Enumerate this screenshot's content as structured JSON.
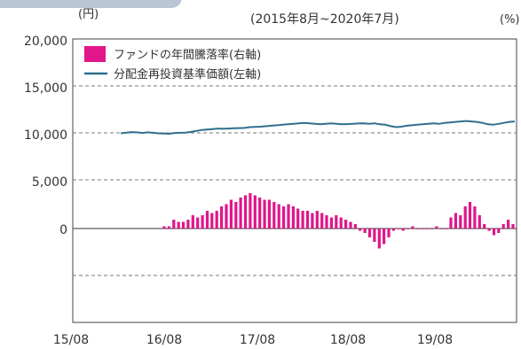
{
  "chart_data": {
    "type": "bar+line",
    "left_unit": "(円)",
    "right_unit": "(%)",
    "period": "(2015年8月~2020年7月)",
    "x_tick_labels": [
      "15/08",
      "16/08",
      "17/08",
      "18/08",
      "19/08"
    ],
    "y_left_ticks": [
      "20,000",
      "15,000",
      "10,000",
      "5,000",
      "0"
    ],
    "y_left_range": [
      -10000,
      20000
    ],
    "legend": [
      {
        "label": "ファンドの年間騰落率(右軸)",
        "color": "#e0168a",
        "kind": "bar"
      },
      {
        "label": "分配金再投資基準価額(左軸)",
        "color": "#2f6f8e",
        "kind": "line"
      }
    ],
    "line_series": {
      "name": "分配金再投資基準価額(左軸)",
      "values": [
        10050,
        10120,
        10180,
        10150,
        10080,
        10150,
        10100,
        10050,
        10020,
        10000,
        10080,
        10100,
        10120,
        10200,
        10300,
        10400,
        10450,
        10500,
        10550,
        10520,
        10550,
        10580,
        10600,
        10620,
        10700,
        10720,
        10750,
        10800,
        10850,
        10900,
        10950,
        11000,
        11050,
        11100,
        11150,
        11100,
        11050,
        11000,
        11050,
        11100,
        11050,
        11000,
        11020,
        11050,
        11080,
        11100,
        11050,
        11100,
        11000,
        10950,
        10800,
        10700,
        10750,
        10850,
        10900,
        10950,
        11000,
        11050,
        11100,
        11050,
        11150,
        11200,
        11250,
        11300,
        11350,
        11300,
        11250,
        11150,
        11000,
        10950,
        11050,
        11150,
        11250,
        11300
      ]
    },
    "bar_series": {
      "name": "ファンドの年間騰落率(右軸)",
      "values": [
        0.01,
        0.01,
        0.04,
        0.03,
        0.03,
        0.04,
        0.06,
        0.05,
        0.06,
        0.08,
        0.07,
        0.08,
        0.1,
        0.11,
        0.13,
        0.12,
        0.14,
        0.15,
        0.16,
        0.15,
        0.14,
        0.13,
        0.13,
        0.12,
        0.11,
        0.1,
        0.11,
        0.1,
        0.09,
        0.08,
        0.08,
        0.07,
        0.08,
        0.07,
        0.06,
        0.05,
        0.06,
        0.05,
        0.04,
        0.03,
        0.02,
        -0.01,
        -0.02,
        -0.04,
        -0.06,
        -0.09,
        -0.07,
        -0.04,
        -0.01,
        0.0,
        -0.01,
        0.0,
        0.01,
        0.0,
        0.0,
        0.0,
        0.0,
        0.01,
        0.0,
        0.0,
        0.05,
        0.07,
        0.06,
        0.1,
        0.12,
        0.1,
        0.06,
        0.02,
        -0.01,
        -0.03,
        -0.02,
        0.02,
        0.04,
        0.02
      ]
    }
  }
}
